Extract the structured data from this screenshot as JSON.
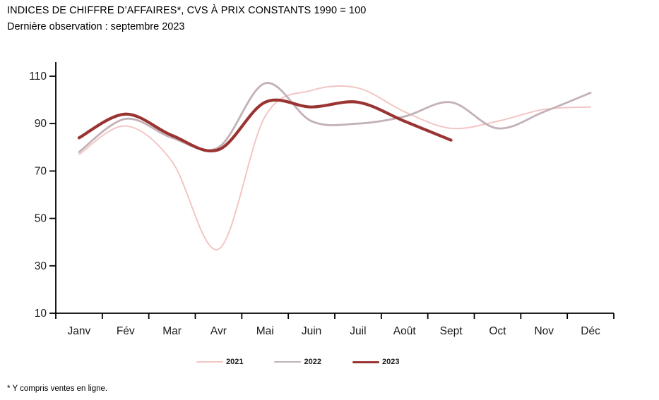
{
  "header": {
    "title": "INDICES DE CHIFFRE D’AFFAIRES*, CVS À PRIX CONSTANTS 1990 = 100",
    "subtitle": "Dernière observation : septembre 2023"
  },
  "footnote": "* Y compris ventes en ligne.",
  "chart_data": {
    "type": "line",
    "title": "INDICES DE CHIFFRE D’AFFAIRES*, CVS À PRIX CONSTANTS 1990 = 100",
    "xlabel": "",
    "ylabel": "",
    "categories": [
      "Janv",
      "Fév",
      "Mar",
      "Avr",
      "Mai",
      "Juin",
      "Juil",
      "Août",
      "Sept",
      "Oct",
      "Nov",
      "Déc"
    ],
    "series": [
      {
        "name": "2021",
        "color": "#f2c6c4",
        "stroke_width": 2,
        "values": [
          77,
          89,
          74,
          37,
          93,
          104,
          105,
          95,
          88,
          91,
          96,
          97
        ]
      },
      {
        "name": "2022",
        "color": "#c3b1b8",
        "stroke_width": 2.8,
        "values": [
          78,
          92,
          84,
          80,
          107,
          91,
          90,
          93,
          99,
          88,
          95,
          103
        ]
      },
      {
        "name": "2023",
        "color": "#9a3432",
        "stroke_width": 4.2,
        "values": [
          84,
          94,
          85,
          79,
          99,
          97,
          99,
          91,
          83
        ]
      }
    ],
    "ylim": [
      10,
      110
    ],
    "yticks": [
      110,
      90,
      70,
      50,
      30,
      10
    ],
    "grid": false,
    "legend_position": "bottom",
    "axis_color": "#000000",
    "smoothed": true
  }
}
